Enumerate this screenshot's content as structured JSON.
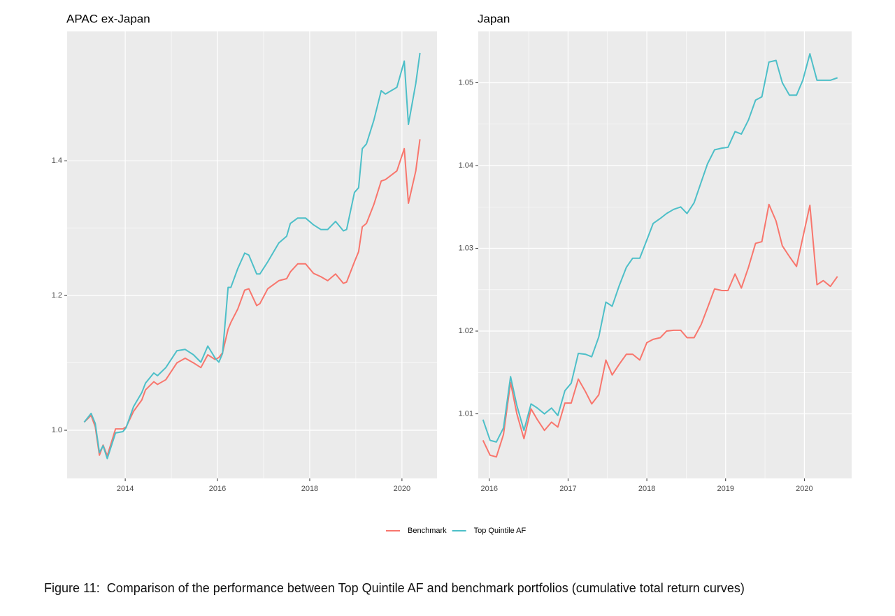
{
  "chart_data": [
    {
      "type": "line",
      "title": "APAC ex-Japan",
      "x": [
        2013.11,
        2013.26,
        2013.35,
        2013.44,
        2013.52,
        2013.61,
        2013.79,
        2013.95,
        2014.02,
        2014.18,
        2014.36,
        2014.44,
        2014.62,
        2014.7,
        2014.88,
        2015.12,
        2015.3,
        2015.48,
        2015.64,
        2015.79,
        2015.95,
        2016.03,
        2016.11,
        2016.23,
        2016.29,
        2016.44,
        2016.59,
        2016.68,
        2016.85,
        2016.92,
        2017.09,
        2017.33,
        2017.5,
        2017.58,
        2017.74,
        2017.91,
        2018.08,
        2018.24,
        2018.39,
        2018.56,
        2018.73,
        2018.8,
        2018.97,
        2019.06,
        2019.14,
        2019.23,
        2019.39,
        2019.55,
        2019.64,
        2019.89,
        2020.05,
        2020.14,
        2020.3,
        2020.39
      ],
      "series": [
        {
          "name": "Benchmark",
          "color": "#F8766D",
          "values": [
            1.012,
            1.022,
            1.005,
            0.963,
            0.978,
            0.962,
            1.002,
            1.002,
            1.005,
            1.028,
            1.045,
            1.06,
            1.072,
            1.068,
            1.075,
            1.1,
            1.107,
            1.1,
            1.093,
            1.112,
            1.105,
            1.108,
            1.115,
            1.15,
            1.16,
            1.18,
            1.208,
            1.21,
            1.185,
            1.188,
            1.21,
            1.222,
            1.225,
            1.235,
            1.247,
            1.247,
            1.233,
            1.228,
            1.222,
            1.232,
            1.218,
            1.22,
            1.25,
            1.265,
            1.302,
            1.307,
            1.335,
            1.37,
            1.372,
            1.385,
            1.418,
            1.337,
            1.385,
            1.432
          ]
        },
        {
          "name": "Top Quintile AF",
          "color": "#4DBFC8",
          "values": [
            1.012,
            1.025,
            1.01,
            0.967,
            0.977,
            0.958,
            0.996,
            0.998,
            1.004,
            1.035,
            1.056,
            1.07,
            1.085,
            1.081,
            1.093,
            1.118,
            1.12,
            1.112,
            1.101,
            1.125,
            1.107,
            1.101,
            1.114,
            1.212,
            1.212,
            1.24,
            1.263,
            1.26,
            1.232,
            1.232,
            1.25,
            1.278,
            1.288,
            1.307,
            1.315,
            1.315,
            1.305,
            1.298,
            1.298,
            1.31,
            1.296,
            1.298,
            1.353,
            1.36,
            1.418,
            1.425,
            1.46,
            1.504,
            1.499,
            1.509,
            1.548,
            1.454,
            1.515,
            1.56
          ]
        }
      ],
      "xlim": [
        2012.74,
        2020.76
      ],
      "xticks": [
        2014,
        2016,
        2018,
        2020
      ],
      "ylim": [
        0.9285,
        1.592
      ],
      "yticks": [
        {
          "value": 1,
          "label": "1.0"
        },
        1.2,
        1.4
      ],
      "grid": true
    },
    {
      "type": "line",
      "title": "Japan",
      "x": [
        2015.92,
        2016.01,
        2016.09,
        2016.18,
        2016.27,
        2016.35,
        2016.44,
        2016.53,
        2016.61,
        2016.7,
        2016.79,
        2016.87,
        2016.96,
        2017.04,
        2017.13,
        2017.22,
        2017.3,
        2017.39,
        2017.48,
        2017.56,
        2017.65,
        2017.74,
        2017.82,
        2017.91,
        2018.0,
        2018.08,
        2018.17,
        2018.25,
        2018.34,
        2018.43,
        2018.51,
        2018.6,
        2018.69,
        2018.77,
        2018.86,
        2018.95,
        2019.03,
        2019.12,
        2019.2,
        2019.29,
        2019.38,
        2019.46,
        2019.55,
        2019.64,
        2019.72,
        2019.81,
        2019.9,
        2019.98,
        2020.07,
        2020.16,
        2020.24,
        2020.33,
        2020.42
      ],
      "series": [
        {
          "color": "#F8766D",
          "values": [
            1.0068,
            1.005,
            1.0048,
            1.0075,
            1.0138,
            1.01,
            1.007,
            1.0106,
            1.0093,
            1.008,
            1.009,
            1.0084,
            1.0113,
            1.0113,
            1.0142,
            1.0127,
            1.0112,
            1.0123,
            1.0165,
            1.0147,
            1.016,
            1.0172,
            1.0172,
            1.0165,
            1.0186,
            1.019,
            1.0192,
            1.02,
            1.0201,
            1.0201,
            1.0192,
            1.0192,
            1.0208,
            1.0228,
            1.0251,
            1.0249,
            1.0249,
            1.0269,
            1.0252,
            1.0277,
            1.0306,
            1.0308,
            1.0353,
            1.0333,
            1.0303,
            1.029,
            1.0278,
            1.0313,
            1.0352,
            1.0256,
            1.0261,
            1.0254,
            1.0266
          ]
        },
        {
          "color": "#4DBFC8",
          "values": [
            1.0093,
            1.0068,
            1.0066,
            1.0083,
            1.0145,
            1.011,
            1.008,
            1.0112,
            1.0107,
            1.01,
            1.0107,
            1.0098,
            1.0128,
            1.0137,
            1.0173,
            1.0172,
            1.0169,
            1.0193,
            1.0235,
            1.023,
            1.0255,
            1.0277,
            1.0288,
            1.0288,
            1.031,
            1.033,
            1.0336,
            1.0342,
            1.0347,
            1.035,
            1.0342,
            1.0355,
            1.038,
            1.0402,
            1.0419,
            1.0421,
            1.0422,
            1.0441,
            1.0438,
            1.0455,
            1.0479,
            1.0483,
            1.0525,
            1.0527,
            1.05,
            1.0485,
            1.0485,
            1.0503,
            1.0535,
            1.0503,
            1.0503,
            1.0503,
            1.0506
          ]
        }
      ],
      "xlim": [
        2015.86,
        2020.6
      ],
      "xticks": [
        2016,
        2017,
        2018,
        2019,
        2020
      ],
      "ylim": [
        1.0022,
        1.0562
      ],
      "yticks": [
        1.01,
        1.02,
        1.03,
        1.04,
        1.05
      ],
      "grid": true
    }
  ],
  "caption": "Figure 11:  Comparison of the performance between Top Quintile AF and benchmark portfolios (cumulative total return curves)"
}
